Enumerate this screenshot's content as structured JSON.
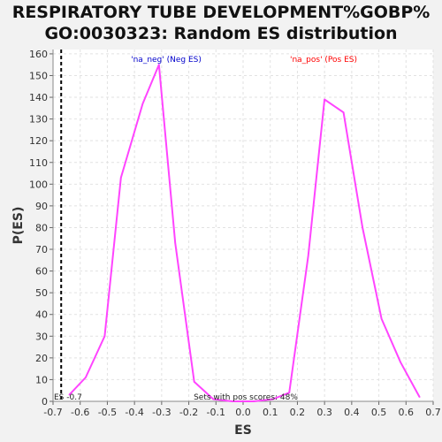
{
  "title_line1": "RESPIRATORY TUBE DEVELOPMENT%GOBP%",
  "title_line2": "GO:0030323: Random ES distribution",
  "colors": {
    "curve": "#ff44ff",
    "neg_label": "#0000cc",
    "pos_label": "#ff0000",
    "grid": "#e2e2e2",
    "background": "#ffffff"
  },
  "annotations": {
    "neg_label": "'na_neg' (Neg ES)",
    "pos_label": "'na_pos' (Pos ES)",
    "pos_scores": "Sets with pos scores: 48%",
    "es_marker": "ES -0.7"
  },
  "chart_data": {
    "type": "line",
    "xlabel": "ES",
    "ylabel": "P(ES)",
    "xlim": [
      -0.7,
      0.7
    ],
    "ylim": [
      0,
      162
    ],
    "x_ticks": [
      -0.7,
      -0.6,
      -0.5,
      -0.4,
      -0.3,
      -0.2,
      -0.1,
      0.0,
      0.1,
      0.2,
      0.3,
      0.4,
      0.5,
      0.6,
      0.7
    ],
    "x_tick_labels": [
      "-0.7",
      "-0.6",
      "-0.5",
      "-0.4",
      "-0.3",
      "-0.2",
      "-0.1",
      "0.0",
      "0.1",
      "0.2",
      "0.3",
      "0.4",
      "0.5",
      "0.6",
      "0.7"
    ],
    "y_ticks": [
      0,
      10,
      20,
      30,
      40,
      50,
      60,
      70,
      80,
      90,
      100,
      110,
      120,
      130,
      140,
      150,
      160
    ],
    "y_tick_labels": [
      "0",
      "10",
      "20",
      "30",
      "40",
      "50",
      "60",
      "70",
      "80",
      "90",
      "100",
      "110",
      "120",
      "130",
      "140",
      "150",
      "160"
    ],
    "grid": true,
    "es_marker_x": -0.67,
    "series": [
      {
        "x": [
          -0.64,
          -0.58,
          -0.51,
          -0.45,
          -0.37,
          -0.31,
          -0.25,
          -0.18,
          -0.11,
          -0.04,
          0.04,
          0.11,
          0.17,
          0.24,
          0.3,
          0.37,
          0.44,
          0.51,
          0.58,
          0.65
        ],
        "values": [
          3,
          11,
          30,
          103,
          137,
          155,
          73,
          9,
          1,
          0,
          0,
          1,
          4,
          67,
          139,
          133,
          80,
          38,
          18,
          2
        ]
      }
    ]
  }
}
